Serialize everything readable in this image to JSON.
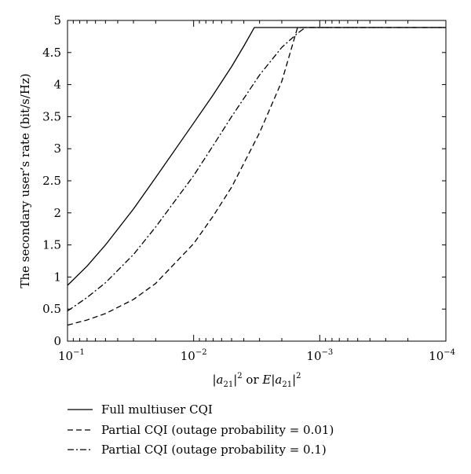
{
  "chart_data": {
    "type": "line",
    "title": "",
    "xlabel": "|a21|^2 or E|a21|^2",
    "ylabel": "The secondary user’s rate (bit/s/Hz)",
    "x_scale": "log",
    "x_reversed": true,
    "xlim": [
      0.1,
      0.0001
    ],
    "ylim": [
      0,
      5
    ],
    "grid": false,
    "legend_position": "bottom",
    "x_ticks": [
      {
        "value": 0.1,
        "base": "10",
        "exp": "−1"
      },
      {
        "value": 0.01,
        "base": "10",
        "exp": "−2"
      },
      {
        "value": 0.001,
        "base": "10",
        "exp": "−3"
      },
      {
        "value": 0.0001,
        "base": "10",
        "exp": "−4"
      }
    ],
    "y_ticks": [
      "0",
      "0.5",
      "1",
      "1.5",
      "2",
      "2.5",
      "3",
      "3.5",
      "4",
      "4.5",
      "5"
    ],
    "series": [
      {
        "name": "Full multiuser CQI",
        "style": "solid",
        "x": [
          0.1,
          0.07,
          0.05,
          0.03,
          0.02,
          0.01,
          0.007,
          0.005,
          0.004,
          0.0033,
          0.0001
        ],
        "y": [
          0.87,
          1.17,
          1.5,
          2.06,
          2.55,
          3.4,
          3.84,
          4.28,
          4.6,
          4.89,
          4.89
        ]
      },
      {
        "name": "Partial CQI (outage probability = 0.01)",
        "style": "dashed",
        "x": [
          0.1,
          0.07,
          0.05,
          0.03,
          0.02,
          0.01,
          0.007,
          0.005,
          0.003,
          0.002,
          0.0015,
          0.0001
        ],
        "y": [
          0.25,
          0.33,
          0.43,
          0.65,
          0.9,
          1.52,
          1.95,
          2.4,
          3.25,
          4.05,
          4.89,
          4.89
        ]
      },
      {
        "name": "Partial CQI (outage probability = 0.1)",
        "style": "dashdot",
        "x": [
          0.1,
          0.07,
          0.05,
          0.03,
          0.02,
          0.01,
          0.007,
          0.005,
          0.003,
          0.002,
          0.0015,
          0.0013,
          0.0001
        ],
        "y": [
          0.47,
          0.68,
          0.91,
          1.35,
          1.78,
          2.58,
          3.05,
          3.5,
          4.15,
          4.58,
          4.8,
          4.89,
          4.89
        ]
      }
    ]
  }
}
